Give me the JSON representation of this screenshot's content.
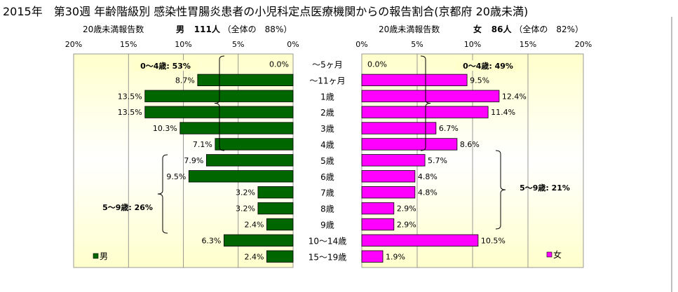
{
  "title": "2015年　第30週 年齢階級別 感染性胃腸炎患者の小児科定点医療機関からの報告割合(京都府 20歳未満)",
  "male_header": {
    "under20_label": "20歳未満報告数",
    "sex": "男",
    "count": "111人",
    "share": "（全体の　88%）"
  },
  "female_header": {
    "under20_label": "20歳未満報告数",
    "sex": "女",
    "count": "86人",
    "share": "（全体の　82%）"
  },
  "colors": {
    "male": "#006600",
    "female": "#ff00ff",
    "plot_bg_edge": "#ffffcc",
    "plot_bg_center": "#ffffff"
  },
  "chart_data": [
    {
      "type": "bar",
      "orientation": "horizontal",
      "direction": "right-to-left",
      "side": "male",
      "categories": [
        "～5ヶ月",
        "～11ヶ月",
        "1歳",
        "2歳",
        "3歳",
        "4歳",
        "5歳",
        "6歳",
        "7歳",
        "8歳",
        "9歳",
        "10～14歳",
        "15～19歳"
      ],
      "series": [
        {
          "name": "男",
          "values": [
            0.0,
            8.7,
            13.5,
            13.5,
            10.3,
            7.1,
            7.9,
            9.5,
            3.2,
            3.2,
            2.4,
            6.3,
            2.4
          ]
        }
      ],
      "data_labels": [
        "0.0%",
        "8.7%",
        "13.5%",
        "13.5%",
        "10.3%",
        "7.1%",
        "7.9%",
        "9.5%",
        "3.2%",
        "3.2%",
        "2.4%",
        "6.3%",
        "2.4%"
      ],
      "xlim": [
        0,
        20
      ],
      "x_ticks": [
        "20%",
        "15%",
        "10%",
        "5%",
        "0%"
      ],
      "annotations": [
        "0～4歳: 53%",
        "5～9歳: 26%"
      ],
      "legend": "bottom-left"
    },
    {
      "type": "bar",
      "orientation": "horizontal",
      "direction": "left-to-right",
      "side": "female",
      "categories": [
        "～5ヶ月",
        "～11ヶ月",
        "1歳",
        "2歳",
        "3歳",
        "4歳",
        "5歳",
        "6歳",
        "7歳",
        "8歳",
        "9歳",
        "10～14歳",
        "15～19歳"
      ],
      "series": [
        {
          "name": "女",
          "values": [
            0.0,
            9.5,
            12.4,
            11.4,
            6.7,
            8.6,
            5.7,
            4.8,
            4.8,
            2.9,
            2.9,
            10.5,
            1.9
          ]
        }
      ],
      "data_labels": [
        "0.0%",
        "9.5%",
        "12.4%",
        "11.4%",
        "6.7%",
        "8.6%",
        "5.7%",
        "4.8%",
        "4.8%",
        "2.9%",
        "2.9%",
        "10.5%",
        "1.9%"
      ],
      "xlim": [
        0,
        20
      ],
      "x_ticks": [
        "0%",
        "5%",
        "10%",
        "15%",
        "20%"
      ],
      "annotations": [
        "0～4歳: 49%",
        "5～9歳: 21%"
      ],
      "legend": "bottom-right"
    }
  ]
}
